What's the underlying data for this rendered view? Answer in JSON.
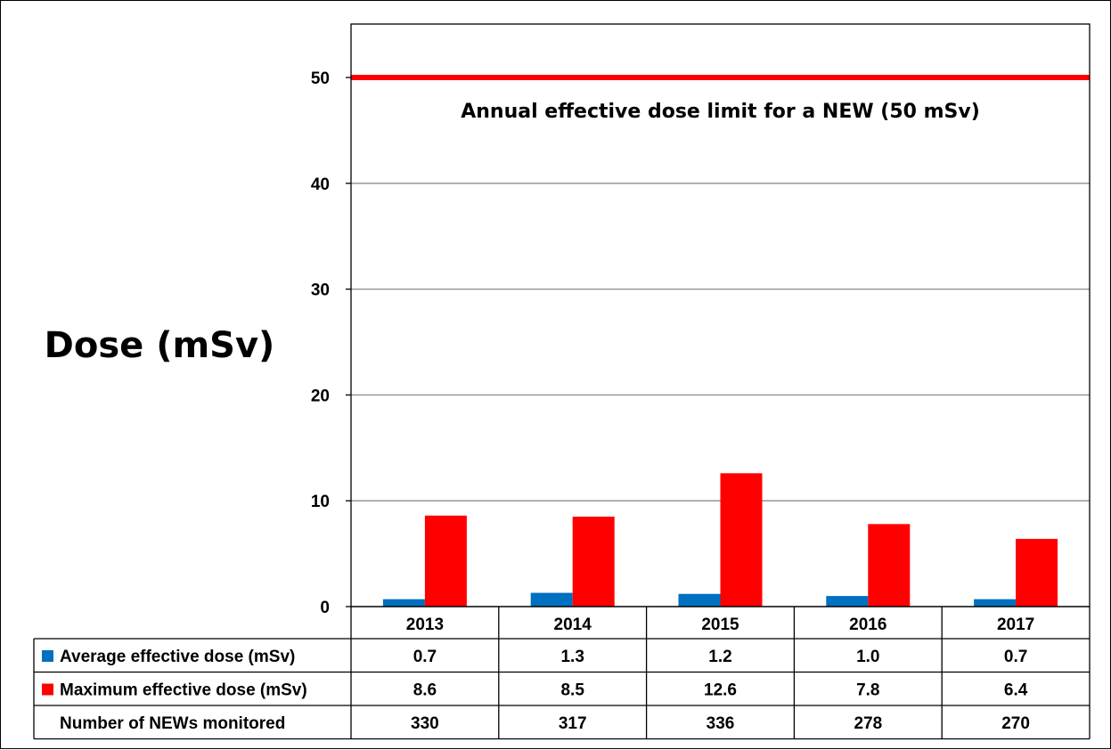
{
  "chart_data": {
    "type": "bar",
    "ylabel": "Dose (mSv)",
    "ylim": [
      0,
      55
    ],
    "yticks": [
      0,
      10,
      20,
      30,
      40,
      50
    ],
    "grid": true,
    "categories": [
      "2013",
      "2014",
      "2015",
      "2016",
      "2017"
    ],
    "series": [
      {
        "name": "Average effective dose (mSv)",
        "color": "#0070C0",
        "values": [
          0.7,
          1.3,
          1.2,
          1.0,
          0.7
        ]
      },
      {
        "name": "Maximum effective dose (mSv)",
        "color": "#FF0000",
        "values": [
          8.6,
          8.5,
          12.6,
          7.8,
          6.4
        ]
      }
    ],
    "reference_line": {
      "value": 50,
      "color": "#FF0000",
      "label": "Annual effective dose limit for a NEW (50 mSv)"
    },
    "data_table": {
      "rows": [
        {
          "label": "Average effective dose (mSv)",
          "legend_color": "#0070C0",
          "values": [
            "0.7",
            "1.3",
            "1.2",
            "1.0",
            "0.7"
          ]
        },
        {
          "label": "Maximum effective dose (mSv)",
          "legend_color": "#FF0000",
          "values": [
            "8.6",
            "8.5",
            "12.6",
            "7.8",
            "6.4"
          ]
        },
        {
          "label": "Number of NEWs monitored",
          "legend_color": "",
          "values": [
            "330",
            "317",
            "336",
            "278",
            "270"
          ]
        }
      ]
    }
  }
}
